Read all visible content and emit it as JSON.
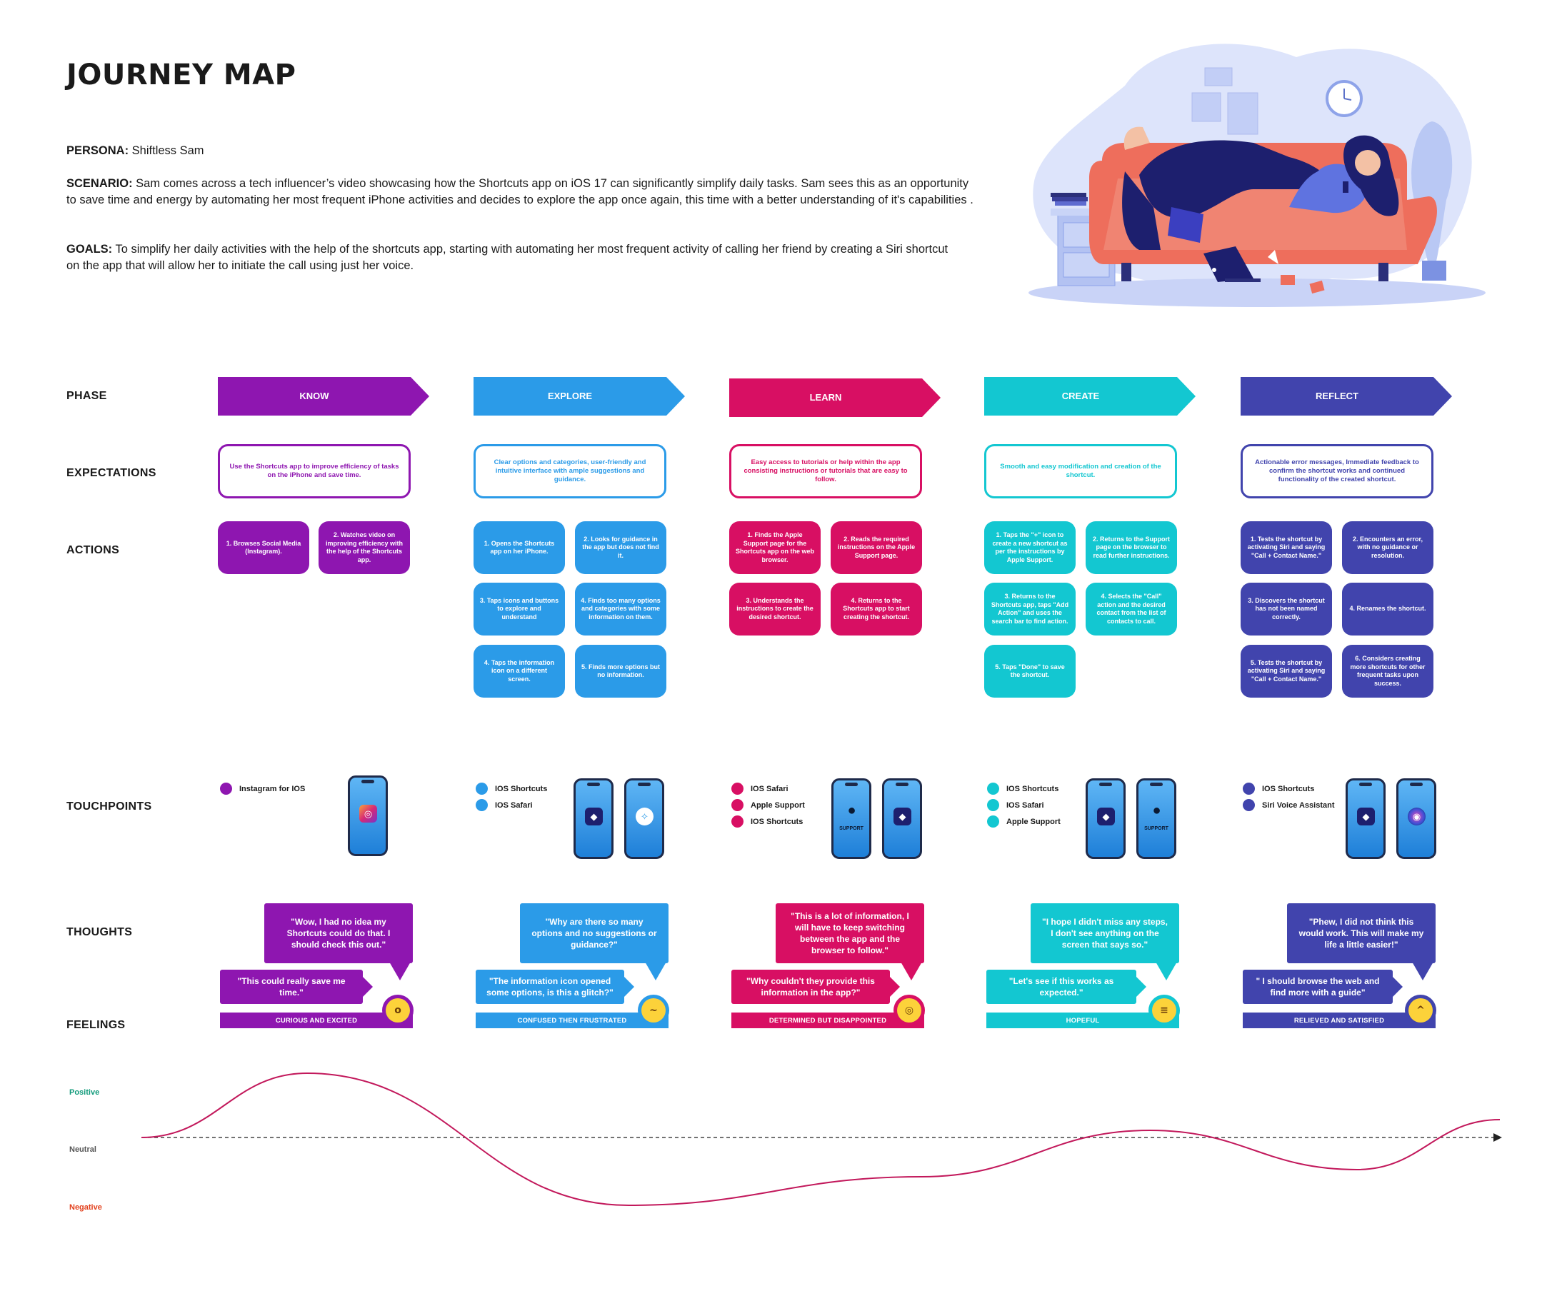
{
  "title": "JOURNEY MAP",
  "persona": {
    "label": "PERSONA:",
    "value": " Shiftless Sam"
  },
  "scenario": {
    "label": "SCENARIO:",
    "value": "  Sam comes across a tech influencer’s video showcasing how the Shortcuts app on iOS 17 can significantly simplify daily tasks. Sam sees this as an opportunity to save time and energy by automating her most frequent iPhone activities and decides to explore the app once again, this time with a better understanding of it's capabilities ."
  },
  "goals": {
    "label": "GOALS:",
    "value": " To simplify her daily activities with the help of the shortcuts app, starting with automating her most frequent activity of calling her friend by creating a Siri shortcut on the app that will allow her to initiate the call using just her voice."
  },
  "row_labels": {
    "phase": "PHASE",
    "expectations": "EXPECTATIONS",
    "actions": "ACTIONS",
    "touchpoints": "TOUCHPOINTS",
    "thoughts": "THOUGHTS",
    "feelings": "FEELINGS"
  },
  "colors": {
    "know": "#8e16b0",
    "explore": "#2b9be8",
    "learn": "#d80f63",
    "create": "#13c7d1",
    "reflect": "#4144ad",
    "curve": "#c2185b"
  },
  "phases": [
    {
      "name": "KNOW",
      "expectation": "Use the Shortcuts app to improve efficiency of tasks on the iPhone and save time.",
      "actions": [
        "1. Browses Social Media (Instagram).",
        "2. Watches video on improving efficiency with the help of the Shortcuts app."
      ],
      "touchpoints": [
        "Instagram for IOS"
      ],
      "phones": [
        {
          "icon": "instagram-icon",
          "glyph": "◎",
          "support": ""
        }
      ],
      "thought1": "\"Wow, I had no idea my Shortcuts could do that. I should check this out.\"",
      "thought2": "\"This could really save me time.\"",
      "feeling": "CURIOUS AND EXCITED",
      "emoji": "hushed-face-icon",
      "emoji_glyph": "o"
    },
    {
      "name": "EXPLORE",
      "expectation": "Clear options and categories, user-friendly and intuitive interface with ample suggestions and guidance.",
      "actions": [
        "1. Opens the Shortcuts app on her iPhone.",
        "2. Looks for guidance in the app but does not find it.",
        "3. Taps icons and buttons to explore and understand",
        "4. Finds too many options and categories with some information on them.",
        "4. Taps the information icon on a different screen.",
        "5. Finds more options but no information."
      ],
      "touchpoints": [
        "IOS Shortcuts",
        "IOS Safari"
      ],
      "phones": [
        {
          "icon": "shortcuts-app-icon",
          "glyph": "◆",
          "support": ""
        },
        {
          "icon": "safari-compass-icon",
          "glyph": "✧",
          "support": ""
        }
      ],
      "thought1": "\"Why are there so many options and no suggestions or guidance?\"",
      "thought2": "\"The information icon opened some options, is this a glitch?\"",
      "feeling": "CONFUSED THEN FRUSTRATED",
      "emoji": "confused-face-icon",
      "emoji_glyph": "~"
    },
    {
      "name": "LEARN",
      "expectation": "Easy access to tutorials or help within the app consisting instructions or tutorials that are easy to follow.",
      "actions": [
        "1. Finds the Apple Support page for the Shortcuts app on the web browser.",
        "2. Reads the required instructions on the Apple Support page.",
        "3. Understands the instructions to create the desired shortcut.",
        "4. Returns to the Shortcuts app to start creating the shortcut."
      ],
      "touchpoints": [
        "IOS Safari",
        "Apple Support",
        "IOS Shortcuts"
      ],
      "phones": [
        {
          "icon": "apple-support-icon",
          "glyph": "●",
          "support": "SUPPORT"
        },
        {
          "icon": "shortcuts-app-icon",
          "glyph": "◆",
          "support": ""
        }
      ],
      "thought1": "\"This is a lot of information, I will have to keep switching between the app and the browser to follow.\"",
      "thought2": "\"Why couldn't they provide this information in the app?\"",
      "feeling": "DETERMINED BUT DISAPPOINTED",
      "emoji": "face-with-monocle-icon",
      "emoji_glyph": "◎"
    },
    {
      "name": "CREATE",
      "expectation": "Smooth and easy modification and creation of the shortcut.",
      "actions": [
        "1. Taps the \"+\" icon to create a new shortcut as per the instructions by Apple Support.",
        "2. Returns to the Support page on the browser to read further instructions.",
        "3. Returns to the Shortcuts app, taps \"Add Action\" and uses the search bar to find action.",
        "4. Selects the \"Call\" action and the desired contact from the list of contacts to call.",
        "5. Taps \"Done\" to save the shortcut."
      ],
      "touchpoints": [
        "IOS Shortcuts",
        "IOS Safari",
        "Apple Support"
      ],
      "phones": [
        {
          "icon": "shortcuts-app-icon",
          "glyph": "◆",
          "support": ""
        },
        {
          "icon": "apple-support-icon",
          "glyph": "●",
          "support": "SUPPORT"
        }
      ],
      "thought1": "\"I hope I didn't miss any steps, I don't see anything on the screen that says so.\"",
      "thought2": "\"Let's see if this works as expected.\"",
      "feeling": "HOPEFUL",
      "emoji": "grimacing-face-icon",
      "emoji_glyph": "≡"
    },
    {
      "name": "REFLECT",
      "expectation": "Actionable error messages, Immediate feedback to confirm the shortcut works and continued functionality of the created shortcut.",
      "actions": [
        "1. Tests the shortcut by activating Siri and saying \"Call + Contact Name.\"",
        "2. Encounters an error, with no guidance or resolution.",
        "3. Discovers the shortcut has not been named correctly.",
        "4. Renames the shortcut.",
        "5. Tests the shortcut by activating Siri and saying \"Call + Contact Name.\"",
        "6. Considers creating more shortcuts for other frequent tasks upon success."
      ],
      "touchpoints": [
        "IOS Shortcuts",
        "Siri Voice Assistant"
      ],
      "phones": [
        {
          "icon": "shortcuts-app-icon",
          "glyph": "◆",
          "support": ""
        },
        {
          "icon": "siri-icon",
          "glyph": "◉",
          "support": ""
        }
      ],
      "thought1": "\"Phew, I did not think this would work. This will make my life a little easier!\"",
      "thought2": "\" I should browse the web and find more with a guide\"",
      "feeling": "RELIEVED AND SATISFIED",
      "emoji": "grinning-sweat-face-icon",
      "emoji_glyph": "^"
    }
  ],
  "emotion_axis": {
    "positive": "Positive",
    "neutral": "Neutral",
    "negative": "Negative"
  },
  "chart_data": {
    "type": "line",
    "title": "",
    "xlabel": "",
    "ylabel": "",
    "categories": [
      "start",
      "KNOW",
      "EXPLORE",
      "LEARN",
      "CREATE",
      "REFLECT",
      "end"
    ],
    "values": [
      0,
      0.9,
      -0.95,
      -0.55,
      0.1,
      -0.45,
      0.25
    ],
    "ylim": [
      -1,
      1
    ],
    "y_tick_labels": [
      "Negative",
      "Neutral",
      "Positive"
    ]
  }
}
